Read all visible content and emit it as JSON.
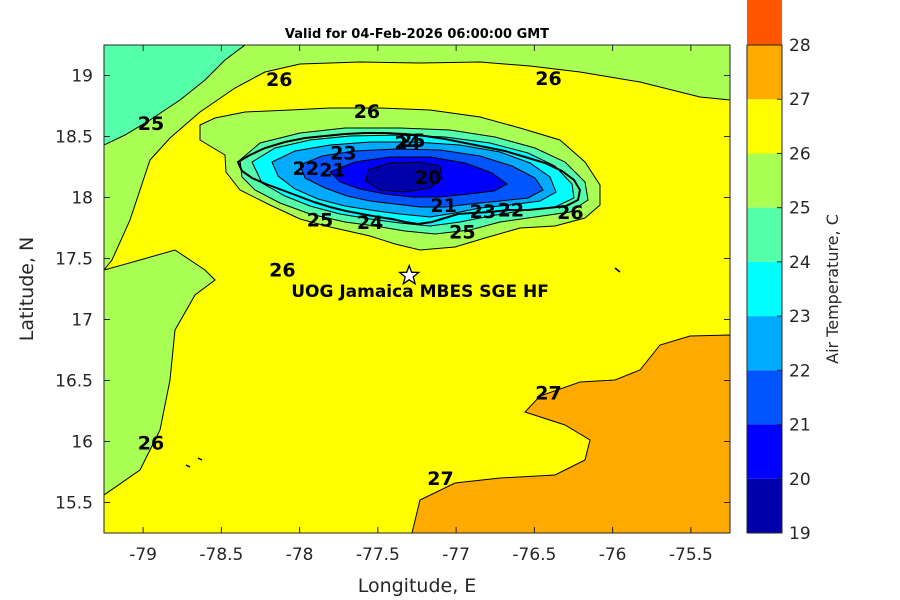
{
  "title": "Valid for 04-Feb-2026 06:00:00 GMT",
  "xlabel": "Longitude, E",
  "ylabel": "Latitude, N",
  "colorbar_label": "Air Temperature, C",
  "station_label": "UOG Jamaica MBES SGE HF",
  "chart_data": {
    "type": "contour",
    "title": "Valid for 04-Feb-2026 06:00:00 GMT",
    "xlabel": "Longitude, E",
    "ylabel": "Latitude, N",
    "xlim": [
      -79.25,
      -75.25
    ],
    "ylim": [
      15.25,
      19.25
    ],
    "x_ticks": [
      -79,
      -78.5,
      -78,
      -77.5,
      -77,
      -76.5,
      -76,
      -75.5
    ],
    "y_ticks": [
      15.5,
      16,
      16.5,
      17,
      17.5,
      18,
      18.5,
      19
    ],
    "colorbar": {
      "label": "Air Temperature, C",
      "range": [
        19,
        28
      ],
      "ticks": [
        19,
        20,
        21,
        22,
        23,
        24,
        25,
        26,
        27,
        28
      ],
      "colors": [
        "#0000aa",
        "#0000ff",
        "#0055ff",
        "#00aaff",
        "#00ffff",
        "#55ffaa",
        "#aaff55",
        "#ffff00",
        "#ffaa00",
        "#ff5500"
      ]
    },
    "station": {
      "name": "UOG Jamaica MBES SGE HF",
      "lon": -77.3,
      "lat": 17.36
    },
    "contour_labels": [
      {
        "text": "26",
        "lon": -78.13,
        "lat": 18.97
      },
      {
        "text": "26",
        "lon": -76.41,
        "lat": 18.98
      },
      {
        "text": "25",
        "lon": -78.95,
        "lat": 18.61
      },
      {
        "text": "26",
        "lon": -77.57,
        "lat": 18.71
      },
      {
        "text": "25",
        "lon": -77.28,
        "lat": 18.47
      },
      {
        "text": "24",
        "lon": -77.31,
        "lat": 18.45
      },
      {
        "text": "23",
        "lon": -77.72,
        "lat": 18.37
      },
      {
        "text": "22",
        "lon": -77.96,
        "lat": 18.24
      },
      {
        "text": "21",
        "lon": -77.79,
        "lat": 18.23
      },
      {
        "text": "20",
        "lon": -77.18,
        "lat": 18.17
      },
      {
        "text": "21",
        "lon": -77.08,
        "lat": 17.94
      },
      {
        "text": "23",
        "lon": -76.83,
        "lat": 17.89
      },
      {
        "text": "22",
        "lon": -76.65,
        "lat": 17.9
      },
      {
        "text": "26",
        "lon": -76.27,
        "lat": 17.88
      },
      {
        "text": "25",
        "lon": -77.87,
        "lat": 17.82
      },
      {
        "text": "24",
        "lon": -77.55,
        "lat": 17.8
      },
      {
        "text": "25",
        "lon": -76.96,
        "lat": 17.72
      },
      {
        "text": "26",
        "lon": -78.11,
        "lat": 17.41
      },
      {
        "text": "27",
        "lon": -76.41,
        "lat": 16.4
      },
      {
        "text": "26",
        "lon": -78.95,
        "lat": 15.99
      },
      {
        "text": "27",
        "lon": -77.1,
        "lat": 15.7
      }
    ]
  }
}
